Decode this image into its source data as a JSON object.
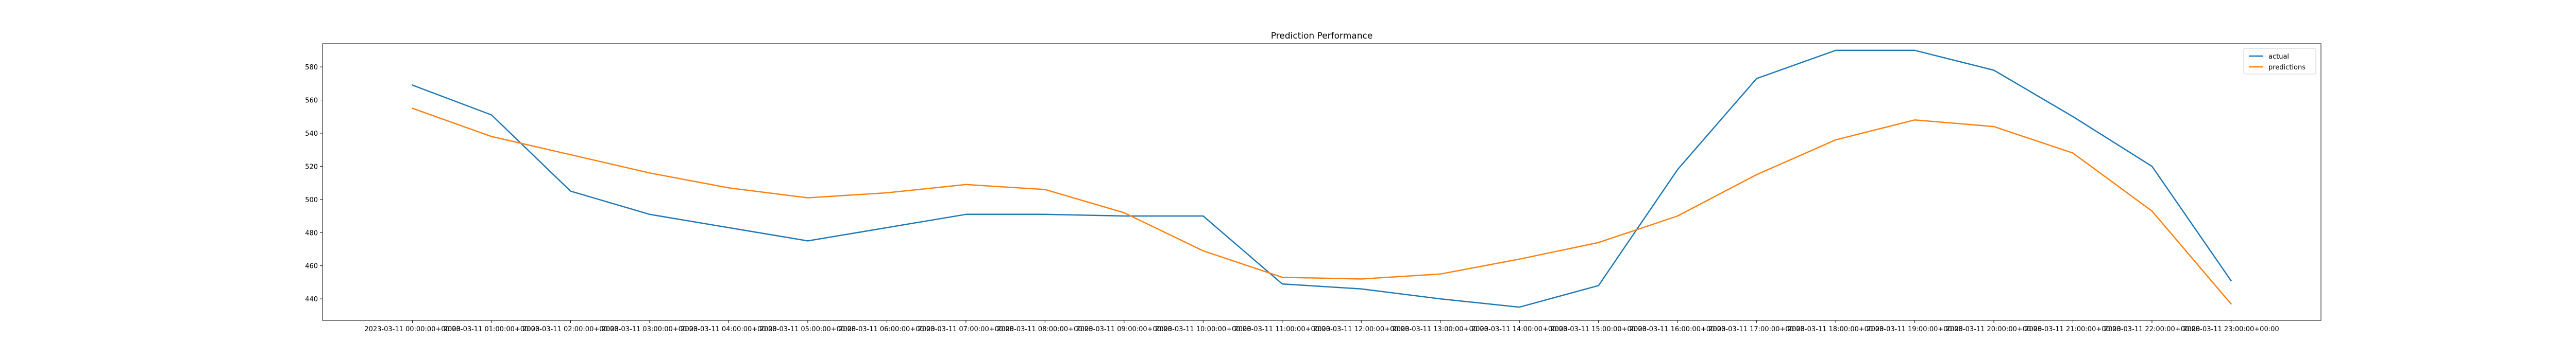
{
  "chart_data": {
    "type": "line",
    "title": "Prediction Performance",
    "xlabel": "",
    "ylabel": "",
    "x": [
      "2023-03-11 00:00:00+00:00",
      "2023-03-11 01:00:00+00:00",
      "2023-03-11 02:00:00+00:00",
      "2023-03-11 03:00:00+00:00",
      "2023-03-11 04:00:00+00:00",
      "2023-03-11 05:00:00+00:00",
      "2023-03-11 06:00:00+00:00",
      "2023-03-11 07:00:00+00:00",
      "2023-03-11 08:00:00+00:00",
      "2023-03-11 09:00:00+00:00",
      "2023-03-11 10:00:00+00:00",
      "2023-03-11 11:00:00+00:00",
      "2023-03-11 12:00:00+00:00",
      "2023-03-11 13:00:00+00:00",
      "2023-03-11 14:00:00+00:00",
      "2023-03-11 15:00:00+00:00",
      "2023-03-11 16:00:00+00:00",
      "2023-03-11 17:00:00+00:00",
      "2023-03-11 18:00:00+00:00",
      "2023-03-11 19:00:00+00:00",
      "2023-03-11 20:00:00+00:00",
      "2023-03-11 21:00:00+00:00",
      "2023-03-11 22:00:00+00:00",
      "2023-03-11 23:00:00+00:00"
    ],
    "series": [
      {
        "name": "actual",
        "color": "#1f77b4",
        "values": [
          569,
          551,
          505,
          491,
          483,
          475,
          483,
          491,
          491,
          490,
          490,
          449,
          446,
          440,
          435,
          448,
          518,
          573,
          590,
          590,
          578,
          550,
          520,
          451
        ]
      },
      {
        "name": "predictions",
        "color": "#ff7f0e",
        "values": [
          555,
          538,
          527,
          516,
          507,
          501,
          504,
          509,
          506,
          492,
          469,
          453,
          452,
          455,
          464,
          474,
          490,
          515,
          536,
          548,
          544,
          528,
          493,
          437
        ]
      }
    ],
    "yticks": [
      440,
      460,
      480,
      500,
      520,
      540,
      560,
      580
    ],
    "ylim": [
      427,
      594
    ],
    "grid": false,
    "legend": "top-right"
  }
}
